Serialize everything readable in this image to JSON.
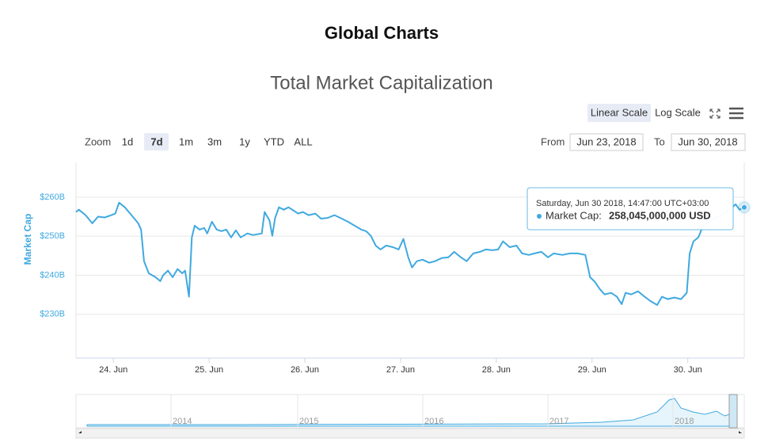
{
  "page_title": "Global Charts",
  "controls": {
    "zoom_label": "Zoom",
    "zoom_buttons": [
      "1d",
      "7d",
      "1m",
      "3m",
      "1y",
      "YTD",
      "ALL"
    ],
    "scale_buttons": [
      "Linear Scale",
      "Log Scale"
    ],
    "from_label": "From",
    "from_date": "Jun 23, 2018",
    "to_label": "To",
    "to_date": "Jun 30, 2018"
  },
  "tooltip": {
    "date": "Saturday, Jun 30 2018, 14:47:00 UTC+03:00",
    "label": "Market Cap:",
    "value": "258,045,000,000 USD"
  },
  "navigator": {
    "labels": [
      "2014",
      "2015",
      "2016",
      "2017",
      "2018"
    ]
  },
  "chart_data": {
    "type": "line",
    "title": "Total Market Capitalization",
    "y_label": "Market Cap",
    "color": "#3fa9e0",
    "grid": true,
    "x": [
      23.61,
      23.64,
      23.71,
      23.78,
      23.84,
      23.91,
      23.98,
      24.02,
      24.06,
      24.12,
      24.19,
      24.26,
      24.29,
      24.32,
      24.37,
      24.44,
      24.49,
      24.52,
      24.57,
      24.62,
      24.67,
      24.72,
      24.75,
      24.79,
      24.82,
      24.85,
      24.9,
      24.95,
      24.98,
      25.03,
      25.08,
      25.13,
      25.18,
      25.23,
      25.28,
      25.33,
      25.4,
      25.46,
      25.55,
      25.58,
      25.63,
      25.66,
      25.69,
      25.73,
      25.78,
      25.83,
      25.88,
      25.93,
      25.98,
      26.04,
      26.11,
      26.17,
      26.24,
      26.31,
      26.37,
      26.45,
      26.52,
      26.59,
      26.64,
      26.69,
      26.74,
      26.79,
      26.85,
      26.92,
      26.98,
      27.03,
      27.08,
      27.12,
      27.17,
      27.23,
      27.3,
      27.36,
      27.43,
      27.5,
      27.56,
      27.63,
      27.69,
      27.76,
      27.83,
      27.89,
      27.96,
      28.02,
      28.07,
      28.14,
      28.21,
      28.27,
      28.34,
      28.4,
      28.47,
      28.54,
      28.6,
      28.69,
      28.77,
      28.85,
      28.93,
      28.98,
      29.03,
      29.08,
      29.13,
      29.2,
      29.26,
      29.31,
      29.35,
      29.41,
      29.48,
      29.55,
      29.61,
      29.68,
      29.73,
      29.79,
      29.86,
      29.93,
      29.99,
      30.02,
      30.06,
      30.11,
      30.16,
      30.22,
      30.29,
      30.37,
      30.44,
      30.5,
      30.54,
      30.59
    ],
    "values": [
      256.2,
      256.8,
      255.4,
      253.3,
      255.0,
      254.8,
      255.4,
      255.8,
      258.6,
      257.4,
      255.4,
      253.3,
      251.7,
      243.6,
      240.5,
      239.5,
      238.5,
      240.0,
      241.2,
      239.5,
      241.6,
      240.5,
      241.2,
      234.5,
      249.7,
      252.7,
      251.7,
      252.1,
      250.7,
      253.7,
      251.7,
      251.3,
      251.7,
      249.7,
      251.5,
      249.7,
      250.7,
      250.3,
      250.7,
      256.2,
      254.1,
      250.1,
      254.7,
      257.4,
      256.8,
      257.4,
      256.6,
      255.8,
      256.2,
      255.4,
      255.8,
      254.5,
      254.7,
      255.4,
      254.7,
      253.7,
      252.7,
      251.7,
      251.3,
      250.1,
      247.6,
      246.6,
      247.6,
      247.2,
      246.6,
      249.3,
      244.6,
      242.0,
      243.6,
      244.0,
      243.2,
      243.6,
      244.4,
      244.6,
      246.0,
      244.6,
      243.6,
      245.6,
      246.0,
      246.6,
      246.4,
      246.6,
      248.7,
      247.2,
      247.6,
      245.6,
      245.2,
      245.6,
      246.0,
      244.6,
      245.6,
      245.2,
      245.6,
      245.6,
      245.2,
      239.5,
      238.3,
      236.5,
      235.1,
      235.5,
      234.5,
      232.6,
      235.5,
      235.1,
      235.9,
      234.5,
      233.4,
      232.4,
      234.5,
      233.9,
      234.3,
      233.9,
      235.5,
      245.6,
      248.7,
      249.7,
      252.7,
      253.7,
      254.7,
      255.8,
      256.8,
      258.2,
      256.8,
      257.4
    ],
    "xlim": [
      23.61,
      30.59
    ],
    "xticks": [
      {
        "value": 24,
        "label": "24. Jun"
      },
      {
        "value": 25,
        "label": "25. Jun"
      },
      {
        "value": 26,
        "label": "26. Jun"
      },
      {
        "value": 27,
        "label": "27. Jun"
      },
      {
        "value": 28,
        "label": "28. Jun"
      },
      {
        "value": 29,
        "label": "29. Jun"
      },
      {
        "value": 30,
        "label": "30. Jun"
      }
    ],
    "ylim": [
      218.8,
      268.9
    ],
    "yticks": [
      {
        "value": 230,
        "label": "$230B"
      },
      {
        "value": 240,
        "label": "$240B"
      },
      {
        "value": 250,
        "label": "$250B"
      },
      {
        "value": 260,
        "label": "$260B"
      }
    ]
  }
}
